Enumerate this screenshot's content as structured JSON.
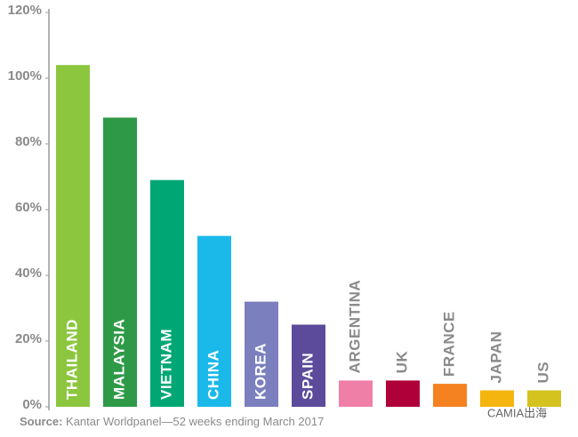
{
  "chart_data": {
    "type": "bar",
    "categories": [
      "THAILAND",
      "MALAYSIA",
      "VIETNAM",
      "CHINA",
      "KOREA",
      "SPAIN",
      "ARGENTINA",
      "UK",
      "FRANCE",
      "JAPAN",
      "US"
    ],
    "values": [
      104,
      88,
      69,
      52,
      32,
      25,
      8,
      8,
      7,
      5,
      5
    ],
    "colors": [
      "#8cc63f",
      "#2e9a47",
      "#00a775",
      "#1bb9ea",
      "#7b7fbe",
      "#5b4b9a",
      "#f07fa7",
      "#b0003a",
      "#f58220",
      "#f5b50f",
      "#d4c21e"
    ],
    "ylim": [
      0,
      120
    ],
    "yticks": [
      {
        "value": 0,
        "label": "0%"
      },
      {
        "value": 20,
        "label": "20%"
      },
      {
        "value": 40,
        "label": "40%"
      },
      {
        "value": 60,
        "label": "60%"
      },
      {
        "value": 80,
        "label": "80%"
      },
      {
        "value": 100,
        "label": "100%"
      },
      {
        "value": 120,
        "label": "120%"
      }
    ],
    "source_label": "Source:",
    "source": "Kantar Worldpanel—52 weeks ending March 2017",
    "watermark": "CAMIA出海"
  }
}
